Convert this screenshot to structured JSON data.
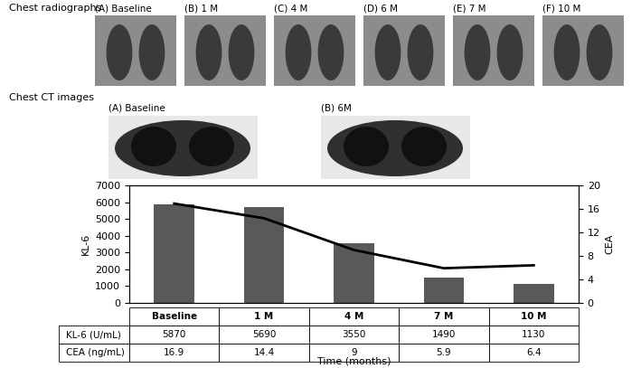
{
  "images": {
    "radiographs": {
      "title": "Chest radiographs",
      "panels": [
        "(A) Baseline",
        "(B) 1 M",
        "(C) 4 M",
        "(D) 6 M",
        "(E) 7 M",
        "(F) 10 M"
      ]
    },
    "ct": {
      "title": "Chest CT images",
      "panels": [
        "(A) Baseline",
        "(B) 6M"
      ]
    }
  },
  "chart_data": {
    "type": "bar",
    "categories": [
      "Baseline",
      "1 M",
      "4 M",
      "7 M",
      "10 M"
    ],
    "series": [
      {
        "name": "KL-6 (U/mL)",
        "type": "bar",
        "color": "#595959",
        "values": [
          5870,
          5690,
          3550,
          1490,
          1130
        ]
      },
      {
        "name": "CEA (ng/mL)",
        "type": "line",
        "color": "#000000",
        "axis": "y2",
        "values": [
          16.9,
          14.4,
          9,
          5.9,
          6.4
        ]
      }
    ],
    "y_label": "KL-6",
    "y2_label": "CEA",
    "x_label": "Time (months)",
    "ylim": [
      0,
      7000
    ],
    "yticks": [
      0,
      1000,
      2000,
      3000,
      4000,
      5000,
      6000,
      7000
    ],
    "y2lim": [
      0,
      20
    ],
    "y2ticks": [
      0,
      4,
      8,
      12,
      16,
      20
    ],
    "grid": false
  }
}
